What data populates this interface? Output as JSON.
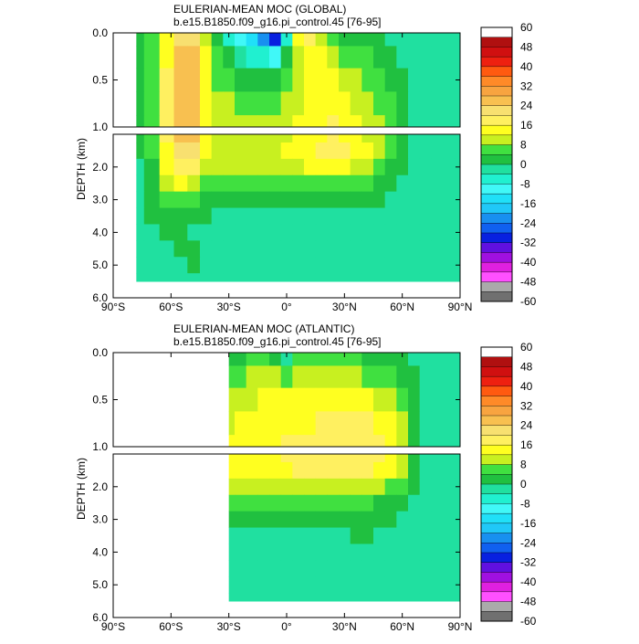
{
  "chart_data": [
    {
      "type": "heatmap",
      "title": "EULERIAN-MEAN MOC (GLOBAL)",
      "subtitle": "b.e15.B1850.f09_g16.pi_control.45 [76-95]",
      "ylabel": "DEPTH (km)",
      "xlabel": "",
      "x_ticks": [
        "90°S",
        "60°S",
        "30°S",
        "0°",
        "30°N",
        "60°N",
        "90°N"
      ],
      "xlim": [
        -90,
        90
      ],
      "y_ticks_upper": [
        "0.0",
        "0.5",
        "1.0"
      ],
      "y_ticks_lower": [
        "2.0",
        "3.0",
        "4.0",
        "5.0",
        "6.0"
      ],
      "ylim_upper": [
        0,
        1.0
      ],
      "ylim_lower": [
        1.0,
        6.0
      ],
      "colorbar_labels": [
        "60",
        "48",
        "40",
        "32",
        "24",
        "16",
        "8",
        "0",
        "-8",
        "-16",
        "-24",
        "-32",
        "-40",
        "-48",
        "-60"
      ],
      "colorbar_colors": [
        "#ffffff",
        "#b01010",
        "#d01010",
        "#ee2010",
        "#ff5a10",
        "#ff8a28",
        "#f8a440",
        "#f8c050",
        "#f8e070",
        "#fff060",
        "#ffff20",
        "#c8f020",
        "#40e040",
        "#20c040",
        "#20e0a0",
        "#20f0d0",
        "#40f8f8",
        "#20e0f8",
        "#20c8f8",
        "#1890f0",
        "#1060f0",
        "#0820e0",
        "#6010e0",
        "#a010e0",
        "#e020e0",
        "#ff50ff",
        "#aaaaaa",
        "#707070"
      ],
      "x": [
        -78,
        -70,
        -62,
        -55,
        -48,
        -42,
        -36,
        -30,
        -24,
        -18,
        -12,
        -6,
        0,
        6,
        12,
        18,
        24,
        30,
        36,
        42,
        48,
        54,
        60,
        66,
        72,
        78,
        84,
        90
      ],
      "depth": [
        0.03,
        0.25,
        0.5,
        0.75,
        1.0,
        1.5,
        2.0,
        2.5,
        3.0,
        3.5,
        4.0,
        4.5,
        5.0,
        5.5
      ],
      "values": [
        [
          2,
          8,
          14,
          24,
          22,
          12,
          4,
          -6,
          -12,
          -16,
          -22,
          -30,
          -6,
          14,
          20,
          10,
          6,
          4,
          4,
          2,
          2,
          0,
          0,
          0,
          0,
          -2,
          0,
          0
        ],
        [
          2,
          8,
          16,
          28,
          26,
          14,
          6,
          2,
          -4,
          -6,
          -8,
          -10,
          2,
          12,
          16,
          14,
          10,
          8,
          8,
          6,
          4,
          2,
          0,
          0,
          0,
          0,
          0,
          0
        ],
        [
          2,
          8,
          18,
          30,
          28,
          16,
          8,
          6,
          4,
          4,
          2,
          2,
          6,
          10,
          14,
          16,
          14,
          12,
          10,
          8,
          6,
          4,
          2,
          0,
          0,
          0,
          0,
          0
        ],
        [
          2,
          8,
          18,
          30,
          28,
          16,
          10,
          10,
          8,
          8,
          8,
          8,
          10,
          12,
          14,
          16,
          16,
          14,
          12,
          10,
          8,
          6,
          2,
          0,
          0,
          0,
          0,
          0
        ],
        [
          2,
          8,
          18,
          28,
          26,
          16,
          12,
          12,
          10,
          10,
          10,
          10,
          12,
          14,
          16,
          16,
          18,
          16,
          14,
          12,
          10,
          6,
          2,
          0,
          0,
          0,
          0,
          0
        ],
        [
          2,
          6,
          16,
          24,
          22,
          14,
          12,
          12,
          12,
          12,
          12,
          12,
          14,
          14,
          16,
          18,
          18,
          18,
          16,
          14,
          10,
          6,
          2,
          0,
          0,
          0,
          0,
          0
        ],
        [
          0,
          4,
          14,
          20,
          18,
          12,
          10,
          10,
          10,
          10,
          10,
          10,
          12,
          12,
          14,
          14,
          16,
          14,
          12,
          10,
          8,
          4,
          2,
          0,
          0,
          0,
          0,
          0
        ],
        [
          0,
          4,
          10,
          14,
          12,
          8,
          6,
          6,
          6,
          6,
          6,
          6,
          8,
          8,
          8,
          8,
          8,
          8,
          8,
          6,
          4,
          2,
          0,
          0,
          0,
          0,
          0,
          0
        ],
        [
          0,
          2,
          6,
          8,
          6,
          4,
          2,
          2,
          2,
          2,
          2,
          2,
          2,
          2,
          2,
          2,
          2,
          2,
          2,
          2,
          2,
          0,
          0,
          0,
          0,
          0,
          0,
          0
        ],
        [
          0,
          2,
          4,
          4,
          2,
          2,
          0,
          0,
          0,
          0,
          0,
          0,
          0,
          0,
          0,
          0,
          0,
          0,
          0,
          0,
          0,
          0,
          0,
          0,
          0,
          0,
          0,
          0
        ],
        [
          0,
          0,
          2,
          2,
          0,
          0,
          -2,
          0,
          0,
          0,
          0,
          0,
          -2,
          0,
          0,
          0,
          0,
          0,
          0,
          0,
          0,
          0,
          0,
          0,
          0,
          0,
          0,
          0
        ],
        [
          0,
          0,
          0,
          2,
          2,
          0,
          0,
          0,
          0,
          0,
          0,
          0,
          0,
          0,
          0,
          0,
          0,
          0,
          0,
          0,
          0,
          0,
          0,
          0,
          0,
          0,
          0,
          0
        ],
        [
          0,
          0,
          0,
          0,
          2,
          0,
          0,
          0,
          0,
          0,
          0,
          0,
          0,
          0,
          0,
          0,
          0,
          0,
          0,
          0,
          0,
          0,
          0,
          0,
          0,
          0,
          0,
          0
        ],
        [
          0,
          0,
          0,
          0,
          0,
          0,
          0,
          0,
          0,
          0,
          0,
          0,
          0,
          0,
          0,
          0,
          0,
          0,
          0,
          0,
          0,
          0,
          0,
          0,
          0,
          0,
          0,
          0
        ]
      ]
    },
    {
      "type": "heatmap",
      "title": "EULERIAN-MEAN MOC (ATLANTIC)",
      "subtitle": "b.e15.B1850.f09_g16.pi_control.45 [76-95]",
      "ylabel": "DEPTH (km)",
      "xlabel": "",
      "x_ticks": [
        "90°S",
        "60°S",
        "30°S",
        "0°",
        "30°N",
        "60°N",
        "90°N"
      ],
      "xlim": [
        -90,
        90
      ],
      "y_ticks_upper": [
        "0.0",
        "0.5",
        "1.0"
      ],
      "y_ticks_lower": [
        "2.0",
        "3.0",
        "4.0",
        "5.0",
        "6.0"
      ],
      "ylim_upper": [
        0,
        1.0
      ],
      "ylim_lower": [
        1.0,
        6.0
      ],
      "colorbar_labels": [
        "60",
        "48",
        "40",
        "32",
        "24",
        "16",
        "8",
        "0",
        "-8",
        "-16",
        "-24",
        "-32",
        "-40",
        "-48",
        "-60"
      ],
      "colorbar_colors": [
        "#ffffff",
        "#b01010",
        "#d01010",
        "#ee2010",
        "#ff5a10",
        "#ff8a28",
        "#f8a440",
        "#f8c050",
        "#f8e070",
        "#fff060",
        "#ffff20",
        "#c8f020",
        "#40e040",
        "#20c040",
        "#20e0a0",
        "#20f0d0",
        "#40f8f8",
        "#20e0f8",
        "#20c8f8",
        "#1890f0",
        "#1060f0",
        "#0820e0",
        "#6010e0",
        "#a010e0",
        "#e020e0",
        "#ff50ff",
        "#aaaaaa",
        "#707070"
      ],
      "x": [
        -30,
        -24,
        -18,
        -12,
        -6,
        0,
        6,
        12,
        18,
        24,
        30,
        36,
        42,
        48,
        54,
        60,
        66,
        72,
        78,
        84,
        90
      ],
      "depth": [
        0.03,
        0.25,
        0.5,
        0.75,
        1.0,
        1.5,
        2.0,
        2.5,
        3.0,
        3.5,
        4.0,
        4.5,
        5.0,
        5.5
      ],
      "values": [
        [
          2,
          4,
          6,
          6,
          4,
          -2,
          6,
          8,
          6,
          6,
          6,
          6,
          4,
          4,
          2,
          2,
          0,
          0,
          0,
          0,
          0
        ],
        [
          6,
          8,
          10,
          10,
          10,
          8,
          10,
          12,
          12,
          12,
          10,
          10,
          8,
          8,
          6,
          4,
          2,
          0,
          0,
          0,
          0
        ],
        [
          10,
          12,
          12,
          14,
          14,
          14,
          14,
          16,
          16,
          14,
          14,
          14,
          14,
          12,
          10,
          8,
          2,
          0,
          0,
          0,
          0
        ],
        [
          12,
          14,
          14,
          16,
          16,
          16,
          16,
          16,
          18,
          18,
          18,
          18,
          18,
          16,
          14,
          10,
          2,
          0,
          0,
          0,
          0
        ],
        [
          14,
          14,
          16,
          16,
          16,
          18,
          18,
          18,
          18,
          18,
          18,
          20,
          18,
          18,
          16,
          12,
          4,
          0,
          0,
          0,
          0
        ],
        [
          14,
          16,
          16,
          16,
          16,
          16,
          18,
          18,
          18,
          18,
          20,
          20,
          18,
          16,
          14,
          10,
          4,
          0,
          0,
          0,
          0
        ],
        [
          10,
          10,
          10,
          10,
          12,
          12,
          12,
          12,
          12,
          12,
          12,
          12,
          12,
          10,
          8,
          6,
          2,
          0,
          0,
          0,
          0
        ],
        [
          6,
          6,
          6,
          6,
          6,
          6,
          6,
          6,
          6,
          6,
          6,
          6,
          6,
          4,
          4,
          2,
          0,
          0,
          0,
          0,
          0
        ],
        [
          2,
          2,
          2,
          2,
          2,
          2,
          2,
          2,
          2,
          2,
          2,
          2,
          2,
          2,
          2,
          0,
          0,
          0,
          0,
          0,
          0
        ],
        [
          0,
          0,
          0,
          0,
          0,
          0,
          0,
          0,
          0,
          0,
          0,
          2,
          2,
          0,
          0,
          0,
          0,
          0,
          0,
          0,
          0
        ],
        [
          0,
          0,
          0,
          0,
          0,
          0,
          0,
          0,
          0,
          0,
          0,
          0,
          0,
          0,
          0,
          0,
          0,
          0,
          0,
          0,
          0
        ],
        [
          0,
          0,
          0,
          0,
          0,
          0,
          0,
          0,
          0,
          0,
          0,
          0,
          0,
          0,
          0,
          0,
          0,
          0,
          0,
          0,
          0
        ],
        [
          0,
          0,
          0,
          0,
          0,
          0,
          0,
          0,
          0,
          0,
          0,
          0,
          0,
          0,
          0,
          0,
          0,
          0,
          0,
          0,
          0
        ],
        [
          0,
          0,
          0,
          0,
          0,
          0,
          0,
          0,
          0,
          0,
          0,
          0,
          0,
          0,
          0,
          0,
          0,
          0,
          0,
          0,
          0
        ]
      ]
    }
  ]
}
